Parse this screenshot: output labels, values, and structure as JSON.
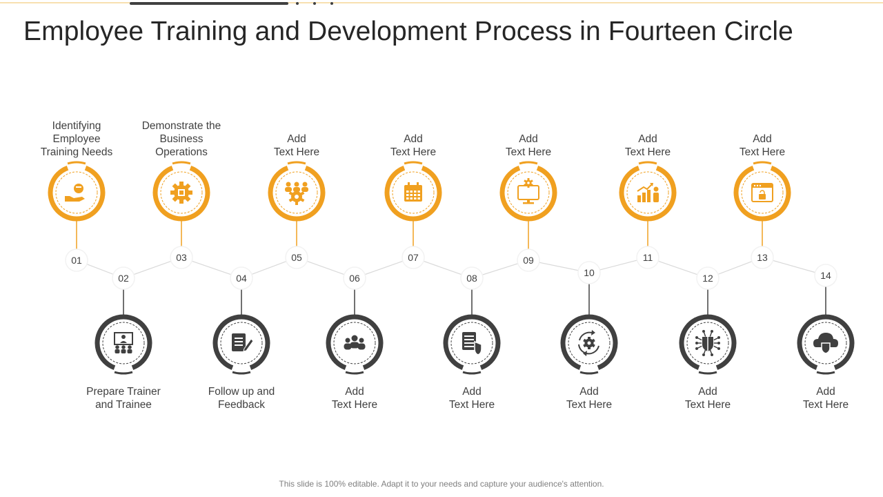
{
  "slide": {
    "title": "Employee Training and Development Process in Fourteen Circle",
    "footer": "This slide is 100% editable. Adapt it to your needs and capture your audience's attention."
  },
  "colors": {
    "accent": "#F0A020",
    "dark": "#404040",
    "connector": "#D9D9D9",
    "text": "#404040"
  },
  "steps": [
    {
      "number": "01",
      "lines": [
        "Identifying",
        "Employee",
        "Training Needs"
      ],
      "icon": "hand-money-icon"
    },
    {
      "number": "02",
      "lines": [
        "Prepare Trainer",
        "and Trainee"
      ],
      "icon": "trainer-screen-icon"
    },
    {
      "number": "03",
      "lines": [
        "Demonstrate the",
        "Business",
        "Operations"
      ],
      "icon": "gear-box-icon"
    },
    {
      "number": "04",
      "lines": [
        "Follow up and",
        "Feedback"
      ],
      "icon": "document-pen-icon"
    },
    {
      "number": "05",
      "lines": [
        "Add",
        "Text Here"
      ],
      "icon": "team-gear-icon"
    },
    {
      "number": "06",
      "lines": [
        "Add",
        "Text Here"
      ],
      "icon": "group-people-icon"
    },
    {
      "number": "07",
      "lines": [
        "Add",
        "Text Here"
      ],
      "icon": "calendar-icon"
    },
    {
      "number": "08",
      "lines": [
        "Add",
        "Text Here"
      ],
      "icon": "document-shield-icon"
    },
    {
      "number": "09",
      "lines": [
        "Add",
        "Text Here"
      ],
      "icon": "monitor-gear-icon"
    },
    {
      "number": "10",
      "lines": [
        "Add",
        "Text Here"
      ],
      "icon": "gear-cycle-icon"
    },
    {
      "number": "11",
      "lines": [
        "Add",
        "Text Here"
      ],
      "icon": "bar-chart-person-icon"
    },
    {
      "number": "12",
      "lines": [
        "Add",
        "Text Here"
      ],
      "icon": "chip-shield-icon"
    },
    {
      "number": "13",
      "lines": [
        "Add",
        "Text Here"
      ],
      "icon": "browser-lock-icon"
    },
    {
      "number": "14",
      "lines": [
        "Add",
        "Text Here"
      ],
      "icon": "cloud-shield-icon"
    }
  ]
}
